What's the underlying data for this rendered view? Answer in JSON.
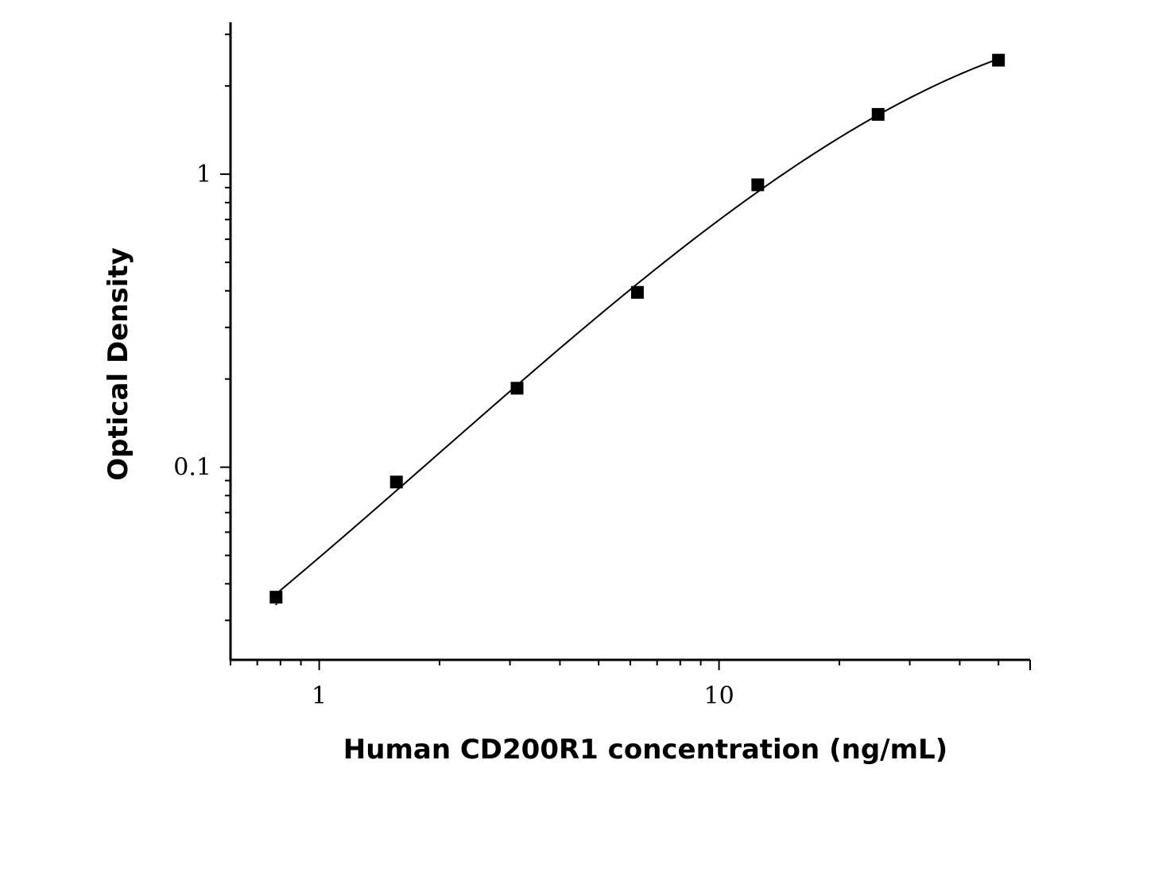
{
  "chart_data": {
    "type": "scatter",
    "title": "",
    "xlabel": "Human CD200R1 concentration (ng/mL)",
    "ylabel": "Optical Density",
    "x_scale": "log",
    "y_scale": "log",
    "xlim": [
      0.6,
      60
    ],
    "ylim": [
      0.022,
      3.3
    ],
    "x_tick_labels": [
      {
        "value": 1,
        "label": "1"
      },
      {
        "value": 10,
        "label": "10"
      }
    ],
    "y_tick_labels": [
      {
        "value": 0.1,
        "label": "0.1"
      },
      {
        "value": 1,
        "label": "1"
      }
    ],
    "grid": false,
    "marker_color": "#000000",
    "line_color": "#000000",
    "series": [
      {
        "marker": "square",
        "x": [
          0.78,
          1.56,
          3.125,
          6.25,
          12.5,
          25,
          50
        ],
        "y": [
          0.036,
          0.089,
          0.186,
          0.395,
          0.92,
          1.6,
          2.45
        ],
        "fit": "four-parameter-logistic"
      }
    ]
  }
}
